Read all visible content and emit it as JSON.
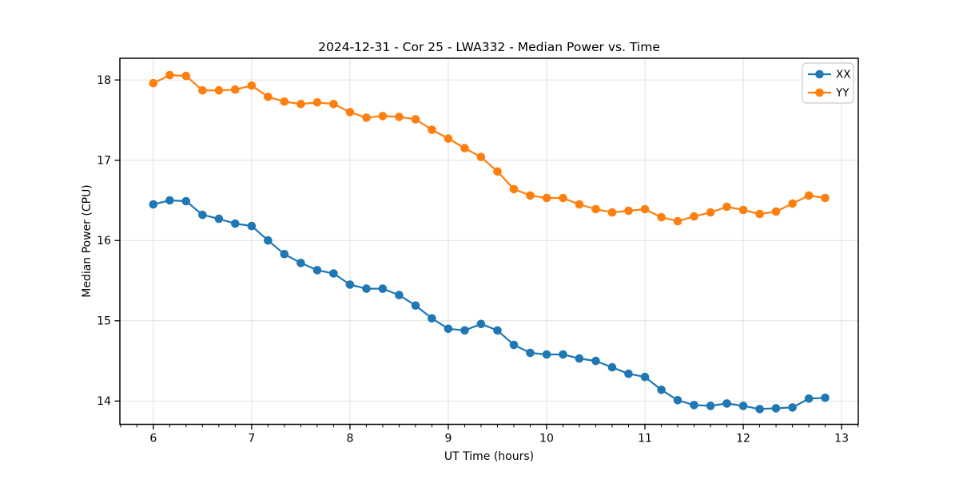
{
  "figure": {
    "background": "#ffffff",
    "spine_color": "#000000",
    "tick_color": "#000000"
  },
  "chart_data": {
    "type": "line",
    "title": "2024-12-31 - Cor 25 - LWA332 - Median Power vs. Time",
    "xlabel": "UT Time (hours)",
    "ylabel": "Median Power (CPU)",
    "xlim": [
      5.66,
      13.17
    ],
    "ylim": [
      13.71,
      18.27
    ],
    "xticks": [
      6,
      7,
      8,
      9,
      10,
      11,
      12,
      13
    ],
    "yticks": [
      14,
      15,
      16,
      17,
      18
    ],
    "x_minor_step": 0.166667,
    "grid": true,
    "grid_color": "#e0e0e0",
    "legend": {
      "position": "upper right",
      "frame_color": "#cccccc",
      "frame_fill": "#ffffff"
    },
    "x": [
      6.0,
      6.167,
      6.333,
      6.5,
      6.667,
      6.833,
      7.0,
      7.167,
      7.333,
      7.5,
      7.667,
      7.833,
      8.0,
      8.167,
      8.333,
      8.5,
      8.667,
      8.833,
      9.0,
      9.167,
      9.333,
      9.5,
      9.667,
      9.833,
      10.0,
      10.167,
      10.333,
      10.5,
      10.667,
      10.833,
      11.0,
      11.167,
      11.333,
      11.5,
      11.667,
      11.833,
      12.0,
      12.167,
      12.333,
      12.5,
      12.667,
      12.833
    ],
    "series": [
      {
        "name": "XX",
        "color": "#1f77b4",
        "values": [
          16.45,
          16.5,
          16.49,
          16.32,
          16.27,
          16.21,
          16.18,
          16.0,
          15.83,
          15.72,
          15.63,
          15.59,
          15.45,
          15.4,
          15.4,
          15.32,
          15.19,
          15.03,
          14.9,
          14.88,
          14.96,
          14.88,
          14.7,
          14.6,
          14.58,
          14.58,
          14.53,
          14.5,
          14.42,
          14.34,
          14.3,
          14.14,
          14.01,
          13.95,
          13.94,
          13.97,
          13.94,
          13.9,
          13.91,
          13.92,
          14.03,
          14.04
        ]
      },
      {
        "name": "YY",
        "color": "#ff7f0e",
        "values": [
          17.96,
          18.06,
          18.05,
          17.87,
          17.87,
          17.88,
          17.93,
          17.79,
          17.73,
          17.7,
          17.72,
          17.7,
          17.6,
          17.53,
          17.55,
          17.54,
          17.51,
          17.38,
          17.27,
          17.15,
          17.04,
          16.86,
          16.64,
          16.56,
          16.53,
          16.53,
          16.45,
          16.39,
          16.35,
          16.37,
          16.39,
          16.29,
          16.24,
          16.3,
          16.35,
          16.42,
          16.38,
          16.33,
          16.36,
          16.46,
          16.56,
          16.53
        ]
      }
    ]
  }
}
